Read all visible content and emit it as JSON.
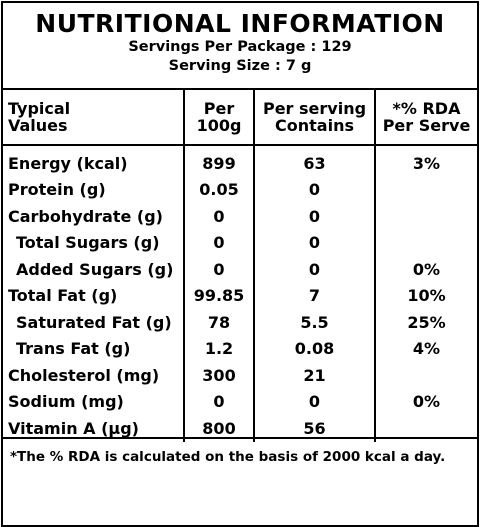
{
  "title": "NUTRITIONAL INFORMATION",
  "servings_per_package": "Servings Per Package : 129",
  "serving_size": "Serving Size : 7 g",
  "columns": {
    "c1_line1": "Typical",
    "c1_line2": "Values",
    "c2_line1": "Per",
    "c2_line2": "100g",
    "c3_line1": "Per serving",
    "c3_line2": "Contains",
    "c4_line1": "*% RDA",
    "c4_line2": "Per Serve"
  },
  "rows": [
    {
      "label": "Energy (kcal)",
      "per100": "899",
      "serving": "63",
      "rda": "3%"
    },
    {
      "label": "Protein (g)",
      "per100": "0.05",
      "serving": "0",
      "rda": ""
    },
    {
      "label": "Carbohydrate (g)",
      "per100": "0",
      "serving": "0",
      "rda": ""
    },
    {
      "label": "Total Sugars (g)",
      "per100": "0",
      "serving": "0",
      "rda": ""
    },
    {
      "label": "Added Sugars (g)",
      "per100": "0",
      "serving": "0",
      "rda": "0%"
    },
    {
      "label": "Total Fat (g)",
      "per100": "99.85",
      "serving": "7",
      "rda": "10%"
    },
    {
      "label": "Saturated Fat (g)",
      "per100": "78",
      "serving": "5.5",
      "rda": "25%"
    },
    {
      "label": "Trans Fat (g)",
      "per100": "1.2",
      "serving": "0.08",
      "rda": "4%"
    },
    {
      "label": "Cholesterol (mg)",
      "per100": "300",
      "serving": "21",
      "rda": ""
    },
    {
      "label": "Sodium (mg)",
      "per100": "0",
      "serving": "0",
      "rda": "0%"
    },
    {
      "label": "Vitamin A (µg)",
      "per100": "800",
      "serving": "56",
      "rda": ""
    }
  ],
  "footnote": "*The % RDA is calculated on the basis of 2000 kcal a day."
}
